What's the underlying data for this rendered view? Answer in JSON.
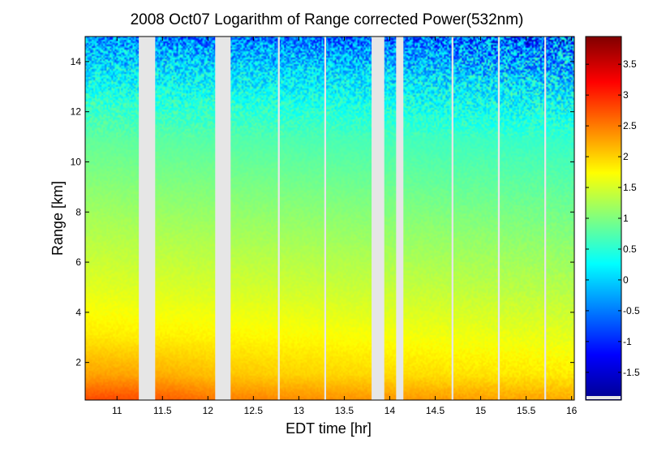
{
  "chart_data": {
    "type": "heatmap",
    "title": "2008 Oct07  Logarithm of Range corrected Power(532nm)",
    "xlabel": "EDT time [hr]",
    "ylabel": "Range [km]",
    "xlim": [
      10.65,
      16.03
    ],
    "ylim": [
      0.5,
      15.0
    ],
    "x_ticks": [
      11,
      11.5,
      12,
      12.5,
      13,
      13.5,
      14,
      14.5,
      15,
      15.5,
      16
    ],
    "x_tick_labels": [
      "11",
      "11.5",
      "12",
      "12.5",
      "13",
      "13.5",
      "14",
      "14.5",
      "15",
      "15.5",
      "16"
    ],
    "y_ticks": [
      2,
      4,
      6,
      8,
      10,
      12,
      14
    ],
    "y_tick_labels": [
      "2",
      "4",
      "6",
      "8",
      "10",
      "12",
      "14"
    ],
    "colorbar": {
      "colormap": "jet",
      "clim": [
        -1.95,
        3.95
      ],
      "ticks": [
        -1.5,
        -1,
        -0.5,
        0,
        0.5,
        1,
        1.5,
        2,
        2.5,
        3,
        3.5
      ],
      "tick_labels": [
        "-1.5",
        "-1",
        "-0.5",
        "0",
        "0.5",
        "1",
        "1.5",
        "2",
        "2.5",
        "3",
        "3.5"
      ]
    },
    "data_gaps_hr": [
      [
        11.24,
        11.42
      ],
      [
        12.08,
        12.25
      ],
      [
        12.77,
        12.79
      ],
      [
        13.28,
        13.3
      ],
      [
        13.8,
        13.94
      ],
      [
        14.07,
        14.15
      ],
      [
        14.68,
        14.7
      ],
      [
        15.19,
        15.21
      ],
      [
        15.7,
        15.72
      ]
    ],
    "value_profile_by_range_km": [
      {
        "range": 0.5,
        "value": 2.4
      },
      {
        "range": 1.5,
        "value": 2.0
      },
      {
        "range": 3.0,
        "value": 1.75
      },
      {
        "range": 5.0,
        "value": 1.45
      },
      {
        "range": 7.0,
        "value": 1.2
      },
      {
        "range": 9.0,
        "value": 0.95
      },
      {
        "range": 11.0,
        "value": 0.7
      },
      {
        "range": 12.5,
        "value": 0.4
      },
      {
        "range": 13.5,
        "value": 0.1
      },
      {
        "range": 14.5,
        "value": -0.3
      },
      {
        "range": 15.0,
        "value": -0.6
      }
    ],
    "grid": false,
    "legend": "none"
  }
}
